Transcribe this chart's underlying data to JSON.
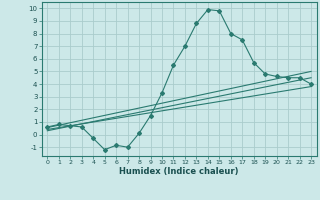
{
  "title": "",
  "xlabel": "Humidex (Indice chaleur)",
  "xlim": [
    -0.5,
    23.5
  ],
  "ylim": [
    -1.7,
    10.5
  ],
  "xticks": [
    0,
    1,
    2,
    3,
    4,
    5,
    6,
    7,
    8,
    9,
    10,
    11,
    12,
    13,
    14,
    15,
    16,
    17,
    18,
    19,
    20,
    21,
    22,
    23
  ],
  "yticks": [
    -1,
    0,
    1,
    2,
    3,
    4,
    5,
    6,
    7,
    8,
    9,
    10
  ],
  "background_color": "#cce8e8",
  "grid_color": "#aacccc",
  "line_color": "#2a7a70",
  "line1_x": [
    0,
    1,
    2,
    3,
    4,
    5,
    6,
    7,
    8,
    9,
    10,
    11,
    12,
    13,
    14,
    15,
    16,
    17,
    18,
    19,
    20,
    21,
    22,
    23
  ],
  "line1_y": [
    0.6,
    0.8,
    0.7,
    0.6,
    -0.3,
    -1.2,
    -0.85,
    -1.0,
    0.1,
    1.5,
    3.3,
    5.5,
    7.0,
    8.8,
    9.9,
    9.8,
    8.0,
    7.5,
    5.7,
    4.8,
    4.6,
    4.5,
    4.5,
    4.0
  ],
  "line2_x": [
    0,
    23
  ],
  "line2_y": [
    0.55,
    5.0
  ],
  "line3_x": [
    0,
    23
  ],
  "line3_y": [
    0.4,
    3.8
  ],
  "line4_x": [
    0,
    23
  ],
  "line4_y": [
    0.3,
    4.5
  ]
}
